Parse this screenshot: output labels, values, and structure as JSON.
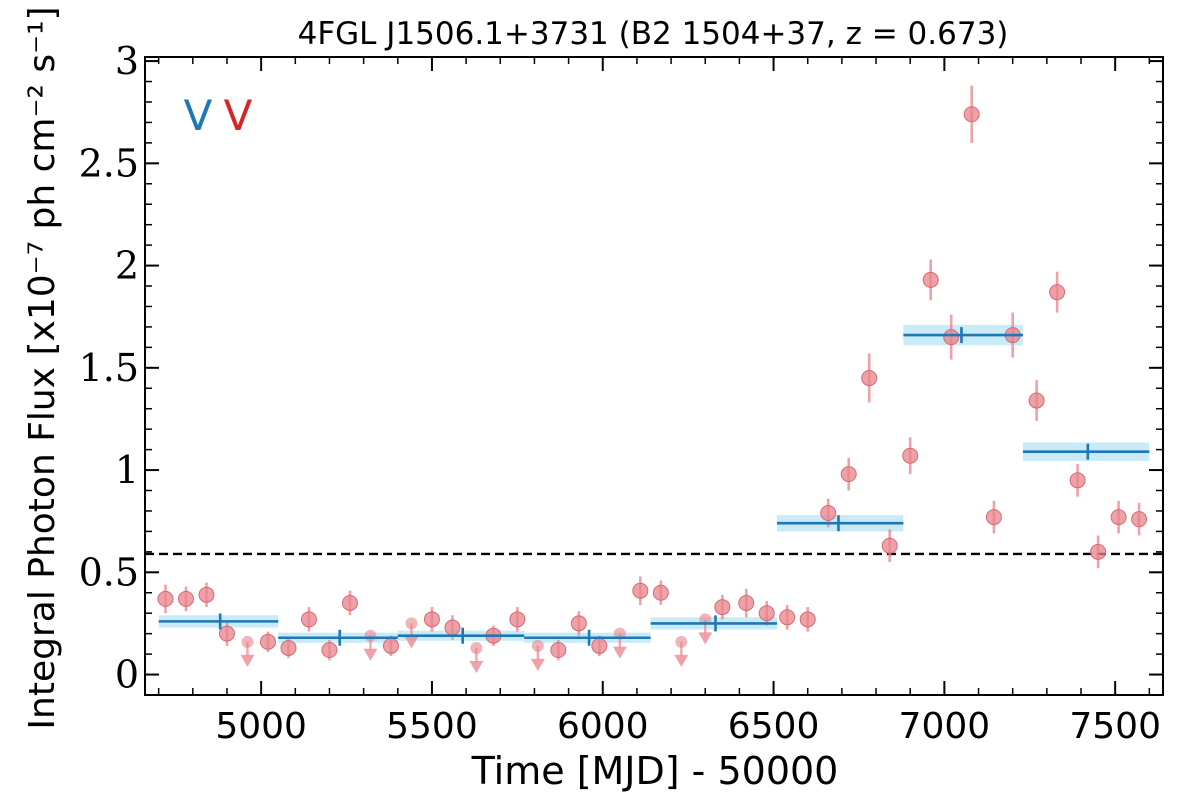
{
  "chart_data": {
    "type": "scatter",
    "title": "4FGL J1506.1+3731 (B2 1504+37, z = 0.673)",
    "xlabel": "Time [MJD] - 50000",
    "ylabel": "Integral Photon Flux [x10⁻⁷ ph cm⁻² s⁻¹]",
    "xlim": [
      4660,
      7640
    ],
    "ylim": [
      -0.1,
      3.02
    ],
    "x_ticks": [
      5000,
      5500,
      6000,
      6500,
      7000,
      7500
    ],
    "x_tick_labels": [
      "5000",
      "5500",
      "6000",
      "6500",
      "7000",
      "7500"
    ],
    "y_ticks": [
      0,
      0.5,
      1,
      1.5,
      2,
      2.5,
      3
    ],
    "y_tick_labels": [
      "0",
      "0.5",
      "1",
      "1.5",
      "2",
      "2.5",
      "3"
    ],
    "grid": false,
    "legend_markers": [
      {
        "text": "V",
        "color": "#1f77b4"
      },
      {
        "text": "V",
        "color": "#d62728"
      }
    ],
    "reference_line": {
      "y": 0.59,
      "style": "dashed",
      "color": "#000000"
    },
    "colors": {
      "points": "#e8838b",
      "bins": "#1f77b4",
      "bin_band": "#bfe7f7"
    },
    "detections": [
      {
        "x": 4720,
        "y": 0.37,
        "err": 0.07
      },
      {
        "x": 4780,
        "y": 0.37,
        "err": 0.06
      },
      {
        "x": 4840,
        "y": 0.39,
        "err": 0.06
      },
      {
        "x": 4900,
        "y": 0.2,
        "err": 0.06
      },
      {
        "x": 5020,
        "y": 0.16,
        "err": 0.05
      },
      {
        "x": 5080,
        "y": 0.13,
        "err": 0.05
      },
      {
        "x": 5140,
        "y": 0.27,
        "err": 0.06
      },
      {
        "x": 5200,
        "y": 0.12,
        "err": 0.05
      },
      {
        "x": 5260,
        "y": 0.35,
        "err": 0.06
      },
      {
        "x": 5380,
        "y": 0.14,
        "err": 0.05
      },
      {
        "x": 5500,
        "y": 0.27,
        "err": 0.06
      },
      {
        "x": 5560,
        "y": 0.23,
        "err": 0.06
      },
      {
        "x": 5680,
        "y": 0.19,
        "err": 0.05
      },
      {
        "x": 5750,
        "y": 0.27,
        "err": 0.06
      },
      {
        "x": 5870,
        "y": 0.12,
        "err": 0.05
      },
      {
        "x": 5930,
        "y": 0.25,
        "err": 0.06
      },
      {
        "x": 5990,
        "y": 0.14,
        "err": 0.05
      },
      {
        "x": 6110,
        "y": 0.41,
        "err": 0.07
      },
      {
        "x": 6170,
        "y": 0.4,
        "err": 0.06
      },
      {
        "x": 6350,
        "y": 0.33,
        "err": 0.06
      },
      {
        "x": 6420,
        "y": 0.35,
        "err": 0.07
      },
      {
        "x": 6480,
        "y": 0.3,
        "err": 0.06
      },
      {
        "x": 6540,
        "y": 0.28,
        "err": 0.06
      },
      {
        "x": 6600,
        "y": 0.27,
        "err": 0.06
      },
      {
        "x": 6660,
        "y": 0.79,
        "err": 0.07
      },
      {
        "x": 6720,
        "y": 0.98,
        "err": 0.08
      },
      {
        "x": 6780,
        "y": 1.45,
        "err": 0.12
      },
      {
        "x": 6840,
        "y": 0.63,
        "err": 0.08
      },
      {
        "x": 6900,
        "y": 1.07,
        "err": 0.09
      },
      {
        "x": 6960,
        "y": 1.93,
        "err": 0.1
      },
      {
        "x": 7020,
        "y": 1.65,
        "err": 0.11
      },
      {
        "x": 7080,
        "y": 2.74,
        "err": 0.14
      },
      {
        "x": 7200,
        "y": 1.66,
        "err": 0.11
      },
      {
        "x": 7145,
        "y": 0.77,
        "err": 0.08
      },
      {
        "x": 7270,
        "y": 1.34,
        "err": 0.1
      },
      {
        "x": 7330,
        "y": 1.87,
        "err": 0.1
      },
      {
        "x": 7390,
        "y": 0.95,
        "err": 0.08
      },
      {
        "x": 7450,
        "y": 0.6,
        "err": 0.08
      },
      {
        "x": 7510,
        "y": 0.77,
        "err": 0.08
      },
      {
        "x": 7570,
        "y": 0.76,
        "err": 0.08
      }
    ],
    "upper_limits": [
      {
        "x": 4960,
        "y": 0.16
      },
      {
        "x": 5320,
        "y": 0.19
      },
      {
        "x": 5440,
        "y": 0.25
      },
      {
        "x": 5630,
        "y": 0.13
      },
      {
        "x": 5810,
        "y": 0.14
      },
      {
        "x": 6050,
        "y": 0.2
      },
      {
        "x": 6230,
        "y": 0.16
      },
      {
        "x": 6300,
        "y": 0.27
      }
    ],
    "bins": [
      {
        "x0": 4700,
        "x1": 5050,
        "xc": 4880,
        "y": 0.26,
        "band": 0.03
      },
      {
        "x0": 5050,
        "x1": 5400,
        "xc": 5230,
        "y": 0.18,
        "band": 0.025
      },
      {
        "x0": 5400,
        "x1": 5770,
        "xc": 5590,
        "y": 0.19,
        "band": 0.025
      },
      {
        "x0": 5770,
        "x1": 6140,
        "xc": 5960,
        "y": 0.18,
        "band": 0.025
      },
      {
        "x0": 6140,
        "x1": 6510,
        "xc": 6330,
        "y": 0.25,
        "band": 0.03
      },
      {
        "x0": 6510,
        "x1": 6880,
        "xc": 6690,
        "y": 0.74,
        "band": 0.04
      },
      {
        "x0": 6880,
        "x1": 7230,
        "xc": 7050,
        "y": 1.66,
        "band": 0.05
      },
      {
        "x0": 7230,
        "x1": 7600,
        "xc": 7420,
        "y": 1.09,
        "band": 0.045
      }
    ]
  }
}
